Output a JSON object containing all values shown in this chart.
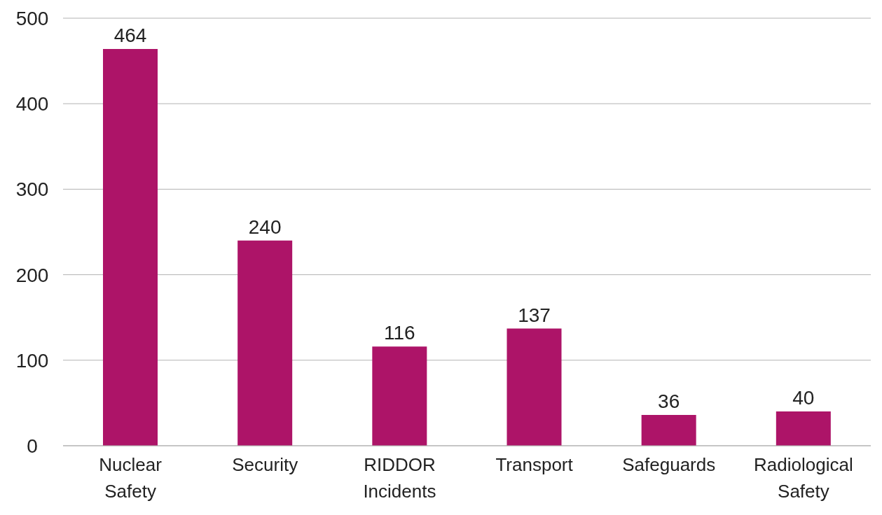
{
  "chart_data": {
    "type": "bar",
    "categories": [
      "Nuclear Safety",
      "Security",
      "RIDDOR Incidents",
      "Transport",
      "Safeguards",
      "Radiological Safety"
    ],
    "values": [
      464,
      240,
      116,
      137,
      36,
      40
    ],
    "color": "#ad1468",
    "ylim": [
      0,
      500
    ],
    "yticks": [
      0,
      100,
      200,
      300,
      400,
      500
    ],
    "grid": "y",
    "data_labels": true
  }
}
